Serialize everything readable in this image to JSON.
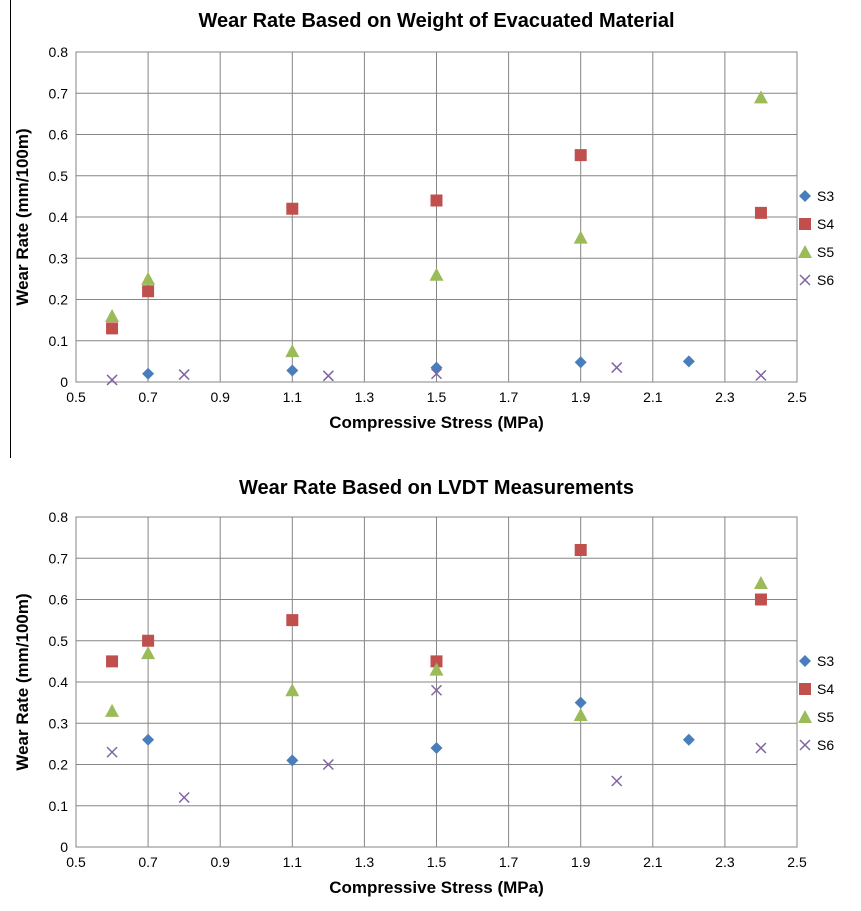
{
  "chart_data": [
    {
      "type": "scatter",
      "title": "Wear Rate Based on Weight of Evacuated Material",
      "xlabel": "Compressive Stress (MPa)",
      "ylabel": "Wear Rate (mm/100m)",
      "xlim": [
        0.5,
        2.5
      ],
      "ylim": [
        0,
        0.8
      ],
      "xticks": [
        "0.5",
        "0.7",
        "0.9",
        "1.1",
        "1.3",
        "1.5",
        "1.7",
        "1.9",
        "2.1",
        "2.3",
        "2.5"
      ],
      "yticks": [
        "0",
        "0.1",
        "0.2",
        "0.3",
        "0.4",
        "0.5",
        "0.6",
        "0.7",
        "0.8"
      ],
      "grid": "vertical and horizontal",
      "legend": "right",
      "series": [
        {
          "name": "S3",
          "marker": "diamond",
          "color": "#4a7ebb",
          "points": [
            [
              0.7,
              0.02
            ],
            [
              1.1,
              0.028
            ],
            [
              1.5,
              0.035
            ],
            [
              1.9,
              0.048
            ],
            [
              2.2,
              0.05
            ]
          ]
        },
        {
          "name": "S4",
          "marker": "square",
          "color": "#c0504d",
          "points": [
            [
              0.6,
              0.13
            ],
            [
              0.7,
              0.22
            ],
            [
              1.1,
              0.42
            ],
            [
              1.5,
              0.44
            ],
            [
              1.9,
              0.55
            ],
            [
              2.4,
              0.41
            ]
          ]
        },
        {
          "name": "S5",
          "marker": "triangle",
          "color": "#9bbb59",
          "points": [
            [
              0.6,
              0.16
            ],
            [
              0.7,
              0.25
            ],
            [
              1.1,
              0.075
            ],
            [
              1.5,
              0.26
            ],
            [
              1.9,
              0.35
            ],
            [
              2.4,
              0.69
            ]
          ]
        },
        {
          "name": "S6",
          "marker": "x",
          "color": "#8064a2",
          "points": [
            [
              0.6,
              0.005
            ],
            [
              0.8,
              0.018
            ],
            [
              1.2,
              0.015
            ],
            [
              1.5,
              0.02
            ],
            [
              2.0,
              0.035
            ],
            [
              2.4,
              0.016
            ]
          ]
        }
      ]
    },
    {
      "type": "scatter",
      "title": "Wear Rate Based on LVDT Measurements",
      "xlabel": "Compressive Stress (MPa)",
      "ylabel": "Wear Rate (mm/100m)",
      "xlim": [
        0.5,
        2.5
      ],
      "ylim": [
        0,
        0.8
      ],
      "xticks": [
        "0.5",
        "0.7",
        "0.9",
        "1.1",
        "1.3",
        "1.5",
        "1.7",
        "1.9",
        "2.1",
        "2.3",
        "2.5"
      ],
      "yticks": [
        "0",
        "0.1",
        "0.2",
        "0.3",
        "0.4",
        "0.5",
        "0.6",
        "0.7",
        "0.8"
      ],
      "grid": "vertical and horizontal",
      "legend": "right",
      "series": [
        {
          "name": "S3",
          "marker": "diamond",
          "color": "#4a7ebb",
          "points": [
            [
              0.7,
              0.26
            ],
            [
              1.1,
              0.21
            ],
            [
              1.5,
              0.24
            ],
            [
              1.9,
              0.35
            ],
            [
              2.2,
              0.26
            ]
          ]
        },
        {
          "name": "S4",
          "marker": "square",
          "color": "#c0504d",
          "points": [
            [
              0.6,
              0.45
            ],
            [
              0.7,
              0.5
            ],
            [
              1.1,
              0.55
            ],
            [
              1.5,
              0.45
            ],
            [
              1.9,
              0.72
            ],
            [
              2.4,
              0.6
            ]
          ]
        },
        {
          "name": "S5",
          "marker": "triangle",
          "color": "#9bbb59",
          "points": [
            [
              0.6,
              0.33
            ],
            [
              0.7,
              0.47
            ],
            [
              1.1,
              0.38
            ],
            [
              1.5,
              0.43
            ],
            [
              1.9,
              0.32
            ],
            [
              2.4,
              0.64
            ]
          ]
        },
        {
          "name": "S6",
          "marker": "x",
          "color": "#8064a2",
          "points": [
            [
              0.6,
              0.23
            ],
            [
              0.8,
              0.12
            ],
            [
              1.2,
              0.2
            ],
            [
              1.5,
              0.38
            ],
            [
              2.0,
              0.16
            ],
            [
              2.4,
              0.24
            ]
          ]
        }
      ]
    }
  ]
}
